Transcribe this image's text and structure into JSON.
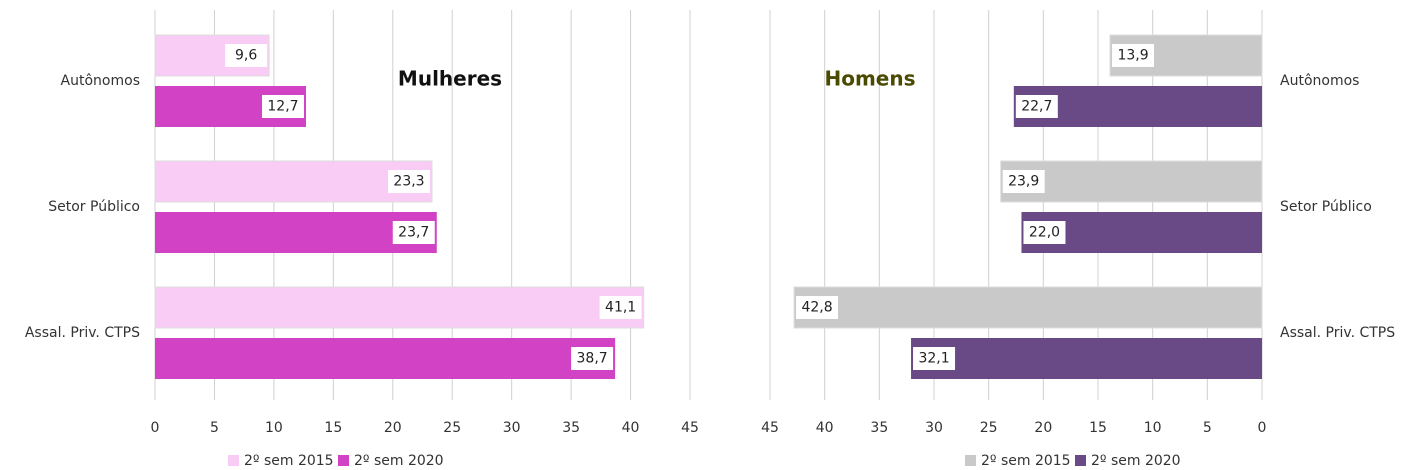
{
  "chart_data": [
    {
      "type": "barh",
      "title": "Mulheres",
      "title_color": "#111111",
      "categories": [
        "Autônomos",
        "Setor Público",
        "Assal. Priv. CTPS"
      ],
      "series": [
        {
          "name": "2º sem 2015",
          "color": "#f9ccf5",
          "values": [
            9.6,
            23.3,
            41.1
          ],
          "value_labels": [
            "9,6",
            "23,3",
            "41,1"
          ]
        },
        {
          "name": "2º sem 2020",
          "color": "#d142c4",
          "values": [
            12.7,
            23.7,
            38.7
          ],
          "value_labels": [
            "12,7",
            "23,7",
            "38,7"
          ]
        }
      ],
      "xlim": [
        0,
        45
      ],
      "xticks": [
        0,
        5,
        10,
        15,
        20,
        25,
        30,
        35,
        40,
        45
      ],
      "x_reversed": false,
      "grid": true,
      "legend": "bottom"
    },
    {
      "type": "barh",
      "title": "Homens",
      "title_color": "#4a4a00",
      "categories": [
        "Autônomos",
        "Setor Público",
        "Assal. Priv. CTPS"
      ],
      "series": [
        {
          "name": "2º sem 2015",
          "color": "#c9c9c9",
          "values": [
            13.9,
            23.9,
            42.8
          ],
          "value_labels": [
            "13,9",
            "23,9",
            "42,8"
          ]
        },
        {
          "name": "2º sem 2020",
          "color": "#6a4a86",
          "values": [
            22.7,
            22.0,
            32.1
          ],
          "value_labels": [
            "22,7",
            "22,0",
            "32,1"
          ]
        }
      ],
      "xlim": [
        0,
        45
      ],
      "xticks": [
        0,
        5,
        10,
        15,
        20,
        25,
        30,
        35,
        40,
        45
      ],
      "x_reversed": true,
      "grid": true,
      "legend": "bottom"
    }
  ]
}
